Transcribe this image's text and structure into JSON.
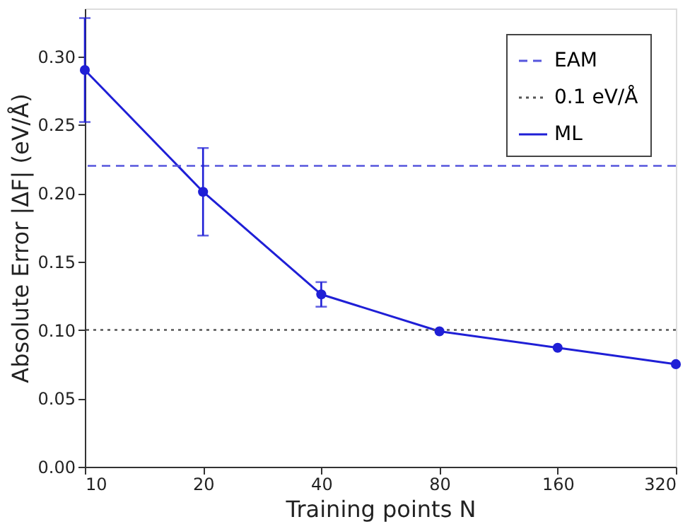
{
  "chart_data": {
    "type": "line",
    "xlabel": "Training points N",
    "ylabel": "Absolute Error |ΔF| (eV/Å)",
    "x": [
      10,
      20,
      40,
      80,
      160,
      320
    ],
    "series": [
      {
        "name": "ML",
        "color": "#1f1fd6",
        "values": [
          0.29,
          0.201,
          0.126,
          0.099,
          0.087,
          0.075
        ],
        "errors": [
          0.038,
          0.032,
          0.009,
          null,
          null,
          null
        ]
      }
    ],
    "ref_lines": [
      {
        "axis": "y",
        "value": 0.22,
        "label": "EAM",
        "color": "#5555dd",
        "line_style": "dashed"
      },
      {
        "axis": "y",
        "value": 0.1,
        "label": "0.1 eV/Å",
        "color": "#555555",
        "line_style": "dotted"
      }
    ],
    "log": "x",
    "xlim": [
      10,
      320
    ],
    "xticks": [
      10,
      20,
      40,
      80,
      160,
      320
    ],
    "ylim": [
      0,
      0.335
    ],
    "yticks": [
      {
        "value": 0,
        "label": "0.00"
      },
      0.05,
      {
        "value": 0.1,
        "label": "0.10"
      },
      0.15,
      {
        "value": 0.2,
        "label": "0.20"
      },
      0.25,
      {
        "value": 0.3,
        "label": "0.30"
      }
    ],
    "grid": false,
    "legend": "top right",
    "marker": "circle",
    "line_style": "solid"
  }
}
